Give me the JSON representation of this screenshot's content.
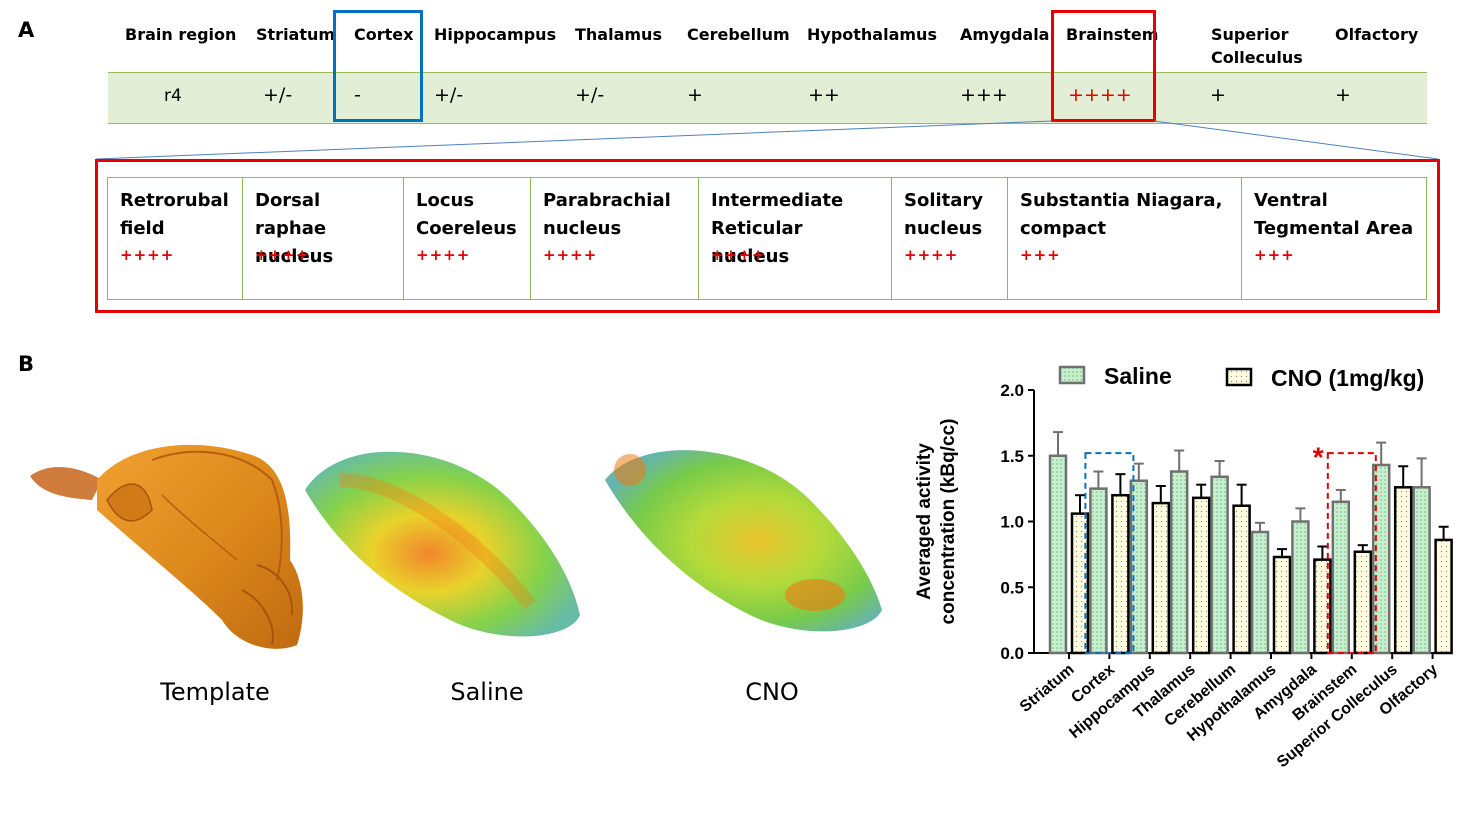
{
  "panel_a": {
    "label": "A",
    "headers": [
      "Brain region",
      "Striatum",
      "Cortex",
      "Hippocampus",
      "Thalamus",
      "Cerebellum",
      "Hypothalamus",
      "Amygdala",
      "Brainstem",
      "Superior Colleculus",
      "Olfactory"
    ],
    "row": [
      "r4",
      "+/-",
      "-",
      "+/-",
      "+/-",
      "+",
      "++",
      "+++",
      "++++",
      "+",
      "+"
    ],
    "subregions": [
      {
        "name": "Retrorubal field",
        "score": "++++"
      },
      {
        "name": "Dorsal raphae nucleus",
        "score": "++++"
      },
      {
        "name": "Locus Coereleus",
        "score": "++++"
      },
      {
        "name": "Parabrachial nucleus",
        "score": "++++"
      },
      {
        "name": "Intermediate Reticular nucleus",
        "score": "++++"
      },
      {
        "name": "Solitary nucleus",
        "score": "++++"
      },
      {
        "name": "Substantia Niagara, compact",
        "score": "+++"
      },
      {
        "name": "Ventral Tegmental Area",
        "score": "+++"
      }
    ]
  },
  "panel_b": {
    "label": "B",
    "image_labels": [
      "Template",
      "Saline",
      "CNO"
    ]
  },
  "colors": {
    "highlight_red": "#e60000",
    "highlight_blue": "#0070c0",
    "row_green": "#e3eed6",
    "saline_fill": "#c6efce",
    "cno_fill": "#fdfae0"
  },
  "chart_data": {
    "type": "bar",
    "ylabel": "Averaged  activity concentration (kBq/cc)",
    "ylim": [
      0,
      2.0
    ],
    "yticks": [
      "0.0",
      "0.5",
      "1.0",
      "1.5",
      "2.0"
    ],
    "categories": [
      "Striatum",
      "Cortex",
      "Hippocampus",
      "Thalamus",
      "Cerebellum",
      "Hypothalamus",
      "Amygdala",
      "Brainstem",
      "Superior Colleculus",
      "Olfactory"
    ],
    "series": [
      {
        "name": "Saline",
        "values": [
          1.5,
          1.25,
          1.31,
          1.38,
          1.34,
          0.92,
          1.0,
          1.15,
          1.43,
          1.26
        ],
        "errors": [
          0.18,
          0.13,
          0.13,
          0.16,
          0.12,
          0.07,
          0.1,
          0.09,
          0.17,
          0.22
        ]
      },
      {
        "name": "CNO (1mg/kg)",
        "values": [
          1.06,
          1.2,
          1.14,
          1.18,
          1.12,
          0.73,
          0.71,
          0.77,
          1.26,
          0.86
        ],
        "errors": [
          0.14,
          0.16,
          0.13,
          0.1,
          0.16,
          0.06,
          0.1,
          0.05,
          0.16,
          0.1
        ]
      }
    ],
    "legend": [
      "Saline",
      "CNO (1mg/kg)"
    ],
    "annotation": "*",
    "highlighted": {
      "blue": "Cortex",
      "red": "Brainstem"
    }
  }
}
